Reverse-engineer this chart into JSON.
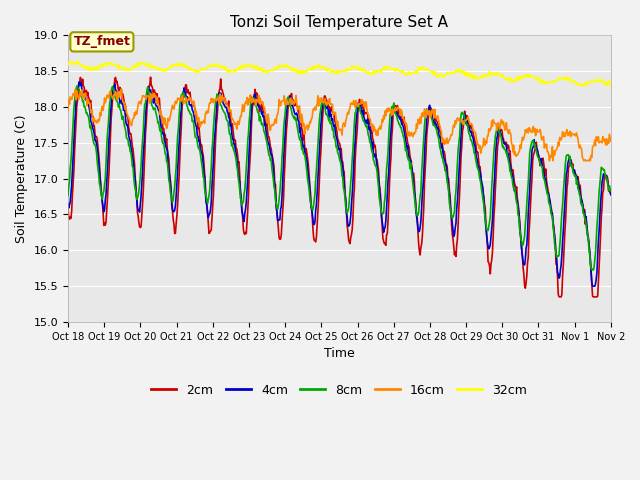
{
  "title": "Tonzi Soil Temperature Set A",
  "xlabel": "Time",
  "ylabel": "Soil Temperature (C)",
  "ylim": [
    15.0,
    19.0
  ],
  "yticks": [
    15.0,
    15.5,
    16.0,
    16.5,
    17.0,
    17.5,
    18.0,
    18.5,
    19.0
  ],
  "xtick_labels": [
    "Oct 18",
    "Oct 19",
    "Oct 20",
    "Oct 21",
    "Oct 22",
    "Oct 23",
    "Oct 24",
    "Oct 25",
    "Oct 26",
    "Oct 27",
    "Oct 28",
    "Oct 29",
    "Oct 30",
    "Oct 31",
    "Nov 1",
    "Nov 2"
  ],
  "colors": {
    "2cm": "#cc0000",
    "4cm": "#0000cc",
    "8cm": "#00aa00",
    "16cm": "#ff8800",
    "32cm": "#ffff00"
  },
  "annotation_text": "TZ_fmet",
  "annotation_color": "#880000",
  "annotation_bg": "#ffffcc",
  "annotation_edge": "#999900",
  "plot_bg_color": "#e8e8e8",
  "fig_bg_color": "#f2f2f2",
  "grid_color": "#ffffff",
  "duration_days": 15.5,
  "n_points": 744,
  "seed": 42
}
